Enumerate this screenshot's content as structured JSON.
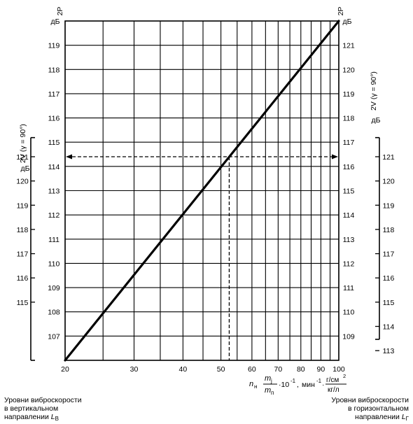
{
  "chart_data": {
    "type": "line",
    "x_axis": {
      "scale": "log",
      "range": [
        20,
        100
      ],
      "ticks": [
        20,
        30,
        40,
        50,
        60,
        70,
        80,
        90,
        100
      ],
      "minor_gridlines": [
        25,
        35,
        45,
        55,
        65,
        75,
        85,
        95
      ],
      "label_parts": {
        "n": "n",
        "n_sub": "н",
        "frac1_num": "m",
        "frac1_num_sub": "j",
        "frac1_den": "m",
        "frac1_den_sub": "п",
        "mult": "·10",
        "mult_exp": "-1",
        "sep": ",",
        "unit1": "мин",
        "unit1_exp": "-1",
        "dot": "·",
        "frac2_num": "г/см",
        "frac2_num_exp": "2",
        "frac2_den": "кг/л"
      }
    },
    "left_outer_axis": {
      "label": "2V (γ = 90°)",
      "unit": "дБ",
      "ticks": [
        "121",
        "120",
        "119",
        "118",
        "117",
        "116",
        "115"
      ]
    },
    "left_inner_axis": {
      "label": "2P",
      "unit": "дБ",
      "ticks": [
        "119",
        "118",
        "117",
        "116",
        "115",
        "114",
        "113",
        "112",
        "111",
        "110",
        "109",
        "108",
        "107"
      ]
    },
    "right_inner_axis": {
      "label": "2P",
      "unit": "дБ",
      "ticks": [
        "121",
        "120",
        "119",
        "118",
        "117",
        "116",
        "115",
        "114",
        "113",
        "112",
        "111",
        "110",
        "109"
      ]
    },
    "right_outer_axis": {
      "label": "2V (γ = 90°)",
      "unit": "дБ",
      "ticks": [
        "121",
        "120",
        "119",
        "118",
        "117",
        "116",
        "115",
        "114",
        "113"
      ]
    },
    "series": [
      {
        "style": "solid",
        "points": [
          [
            20,
            106
          ],
          [
            100,
            120
          ]
        ]
      }
    ],
    "example": {
      "x": 52.5,
      "level_left": 114.4,
      "level_right": 116.4
    },
    "grid": true,
    "legend": "none"
  },
  "footer": {
    "left_lines": [
      "Уровни виброскорости",
      "в вертикальном",
      "направлении "
    ],
    "left_symbol": "L",
    "left_symbol_sub": "В",
    "right_lines": [
      "Уровни виброскорости",
      "в горизонтальном",
      "направлении "
    ],
    "right_symbol": "L",
    "right_symbol_sub": "Г"
  }
}
